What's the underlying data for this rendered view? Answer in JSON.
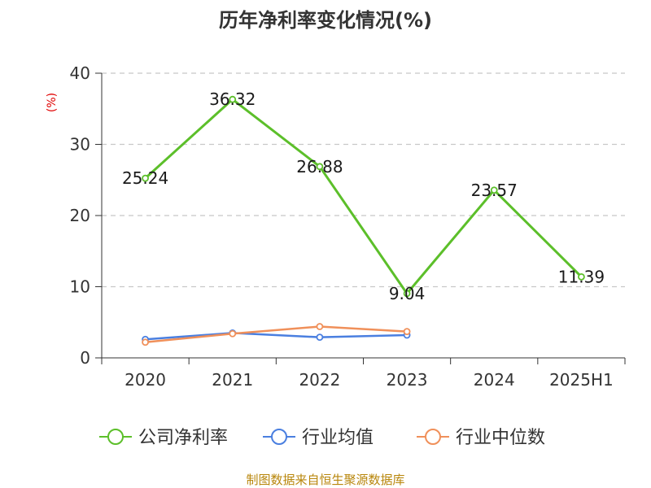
{
  "chart_data": {
    "type": "line",
    "title": "历年净利率变化情况(%)",
    "xlabel": "",
    "ylabel": "(%)",
    "categories": [
      "2020",
      "2021",
      "2022",
      "2023",
      "2024",
      "2025H1"
    ],
    "ylim": [
      0,
      40
    ],
    "yticks": [
      0,
      10,
      20,
      30,
      40
    ],
    "grid": true,
    "legend_position": "bottom",
    "series": [
      {
        "name": "公司净利率",
        "color": "#5cbf2a",
        "values": [
          25.24,
          36.32,
          26.88,
          9.04,
          23.57,
          11.39
        ],
        "labels": [
          "25.24",
          "36.32",
          "26.88",
          "9.04",
          "23.57",
          "11.39"
        ]
      },
      {
        "name": "行业均值",
        "color": "#4a7fe0",
        "values": [
          2.6,
          3.5,
          2.9,
          3.2,
          null,
          null
        ]
      },
      {
        "name": "行业中位数",
        "color": "#f0905a",
        "values": [
          2.2,
          3.4,
          4.4,
          3.7,
          null,
          null
        ]
      }
    ],
    "source": "制图数据来自恒生聚源数据库"
  }
}
